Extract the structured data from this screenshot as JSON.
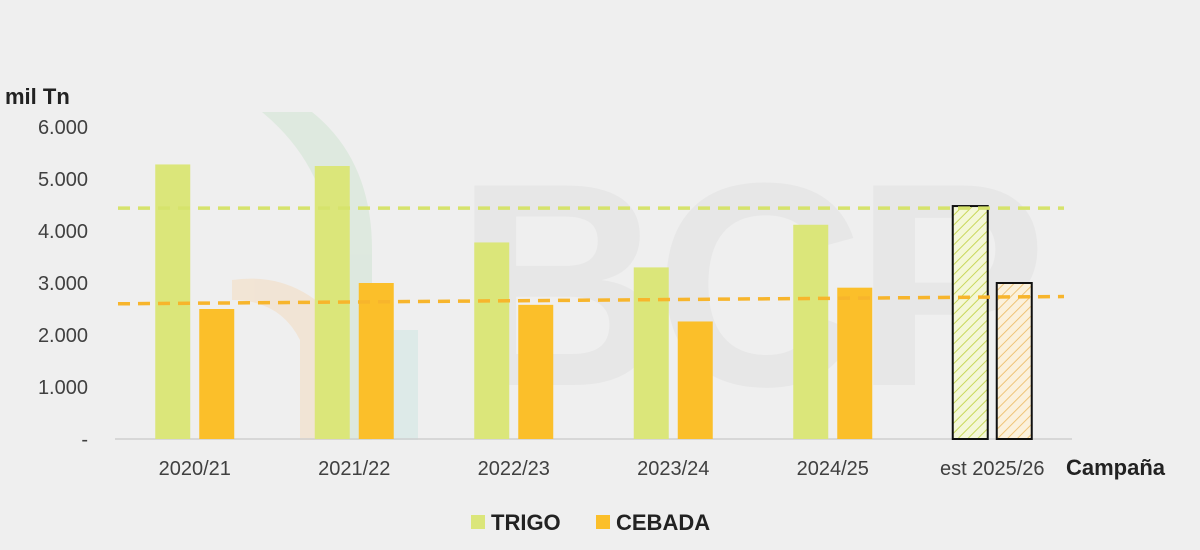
{
  "chart_data": {
    "type": "bar",
    "ylabel": "mil Tn",
    "xlabel": "Campaña",
    "categories": [
      "2020/21",
      "2021/22",
      "2022/23",
      "2023/24",
      "2024/25",
      "est 2025/26"
    ],
    "estimated_categories": [
      "est 2025/26"
    ],
    "y_ticks": [
      "-",
      "1.000",
      "2.000",
      "3.000",
      "4.000",
      "5.000",
      "6.000"
    ],
    "ylim": [
      0,
      6000
    ],
    "grid": false,
    "legend_position": "bottom",
    "watermark": "BCP",
    "series": [
      {
        "name": "TRIGO",
        "color": "#dbe67a",
        "values": [
          5280,
          5250,
          3780,
          3300,
          4120,
          4480
        ]
      },
      {
        "name": "CEBADA",
        "color": "#fbbf2a",
        "values": [
          2500,
          3000,
          2580,
          2260,
          2910,
          3000
        ]
      }
    ],
    "reference_lines": [
      {
        "series": "TRIGO",
        "color": "#d6e36c",
        "value_start": 4440,
        "value_end": 4440
      },
      {
        "series": "CEBADA",
        "color": "#f7b52c",
        "value_start": 2600,
        "value_end": 2740
      }
    ]
  }
}
